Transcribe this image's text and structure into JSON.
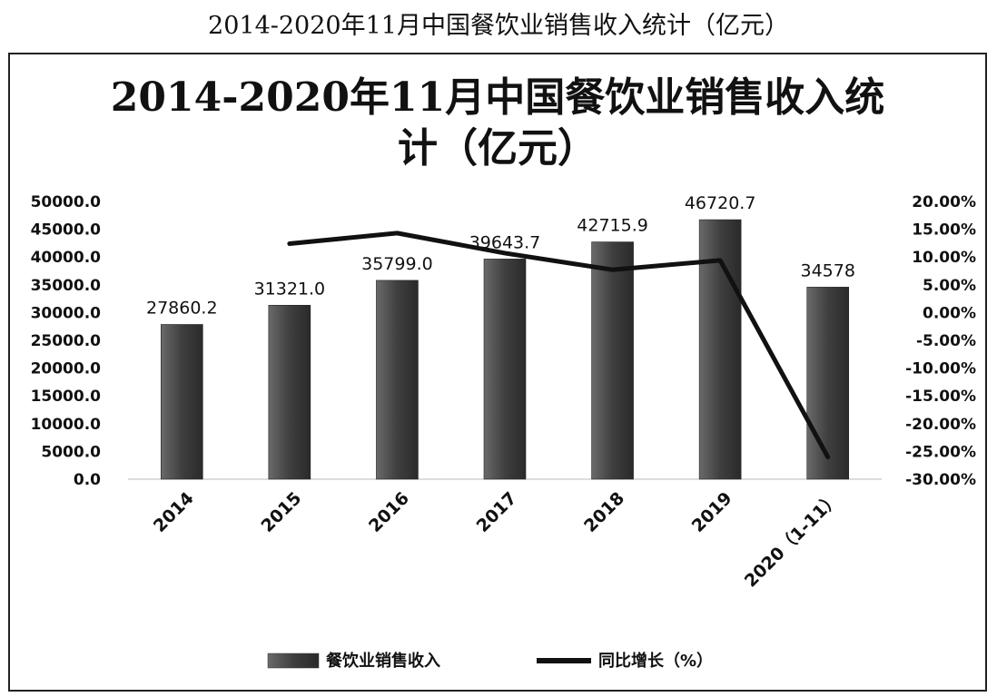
{
  "page_title": "2014-2020年11月中国餐饮业销售收入统计（亿元）",
  "chart_data": {
    "type": "bar",
    "title": "2014-2020年11月中国餐饮业销售收入统计（亿元）",
    "title_lines": [
      "2014-2020年11月中国餐饮业销售收入统",
      "计（亿元）"
    ],
    "categories": [
      "2014",
      "2015",
      "2016",
      "2017",
      "2018",
      "2019",
      "2020（1-11）"
    ],
    "series": [
      {
        "name": "餐饮业销售收入",
        "type": "bar",
        "axis": "left",
        "values": [
          27860.2,
          31321.0,
          35799.0,
          39643.7,
          42715.9,
          46720.7,
          34578
        ],
        "labels": [
          "27860.2",
          "31321.0",
          "35799.0",
          "39643.7",
          "42715.9",
          "46720.7",
          "34578"
        ],
        "color": "#4d4d4d"
      },
      {
        "name": "同比增长（%）",
        "type": "line",
        "axis": "right",
        "values": [
          null,
          12.4,
          14.3,
          10.7,
          7.7,
          9.4,
          -26.0
        ],
        "color": "#111111"
      }
    ],
    "y_left": {
      "min": 0,
      "max": 50000,
      "step": 5000,
      "ticks": [
        "0.0",
        "5000.0",
        "10000.0",
        "15000.0",
        "20000.0",
        "25000.0",
        "30000.0",
        "35000.0",
        "40000.0",
        "45000.0",
        "50000.0"
      ]
    },
    "y_right": {
      "min": -30,
      "max": 20,
      "step": 5,
      "ticks": [
        "-30.00%",
        "-25.00%",
        "-20.00%",
        "-15.00%",
        "-10.00%",
        "-5.00%",
        "0.00%",
        "5.00%",
        "10.00%",
        "15.00%",
        "20.00%"
      ]
    },
    "grid": false,
    "legend_position": "bottom",
    "legend": [
      "餐饮业销售收入",
      "同比增长（%）"
    ]
  }
}
